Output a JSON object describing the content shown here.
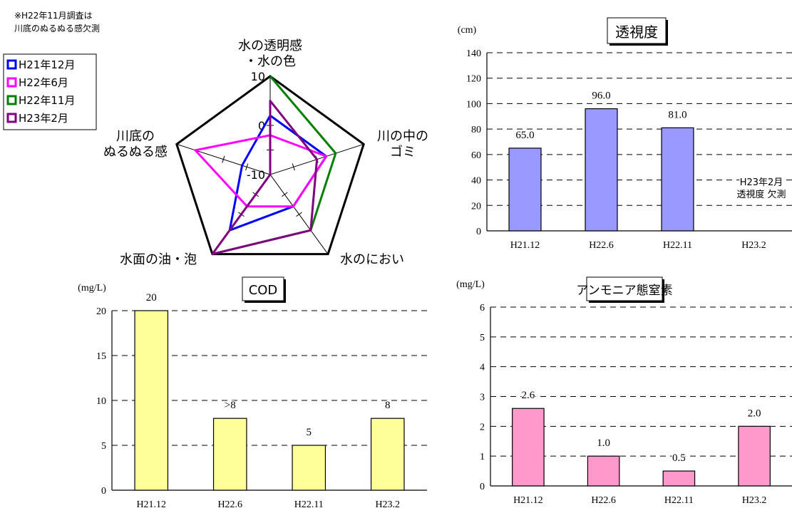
{
  "note": [
    "※H22年11月調査は",
    "川底のぬるぬる感欠測"
  ],
  "radar": {
    "axes": [
      {
        "label": [
          "水の透明感",
          "・水の色"
        ]
      },
      {
        "label": [
          "川の中の",
          "ゴミ"
        ]
      },
      {
        "label": [
          "水のにおい"
        ]
      },
      {
        "label": [
          "水面の油・泡"
        ]
      },
      {
        "label": [
          "川底の",
          "ぬるぬる感"
        ]
      }
    ],
    "range": [
      -10,
      10
    ],
    "ticks": [
      "10",
      "0",
      "-10"
    ],
    "legend": [
      {
        "label": "H21年12月",
        "color": "#0000ff"
      },
      {
        "label": "H22年6月",
        "color": "#ff00ff"
      },
      {
        "label": "H22年11月",
        "color": "#008000"
      },
      {
        "label": "H23年2月",
        "color": "#800080"
      }
    ],
    "series": [
      {
        "name": "H21年12月",
        "color": "#0000ff",
        "values": [
          2,
          2,
          -2,
          4,
          -4
        ]
      },
      {
        "name": "H22年6月",
        "color": "#ff00ff",
        "values": [
          -2,
          2,
          -2,
          -2,
          6
        ]
      },
      {
        "name": "H22年11月",
        "color": "#008000",
        "values": [
          10,
          4,
          4,
          10,
          null
        ]
      },
      {
        "name": "H23年2月",
        "color": "#800080",
        "values": [
          5,
          0,
          4,
          10,
          -10
        ]
      }
    ]
  },
  "chart_data": [
    {
      "type": "bar",
      "title": "透視度",
      "ylabel": "(cm)",
      "categories": [
        "H21.12",
        "H22.6",
        "H22.11",
        "H23.2"
      ],
      "values": [
        65.0,
        96.0,
        81.0,
        null
      ],
      "value_labels": [
        "65.0",
        "96.0",
        "81.0",
        ""
      ],
      "ylim": [
        0,
        140
      ],
      "yticks": [
        0,
        20,
        40,
        60,
        80,
        100,
        120,
        140
      ],
      "bar_color": "#9999ff",
      "grid": true,
      "annotation": [
        "H23年2月",
        "透視度 欠測"
      ]
    },
    {
      "type": "bar",
      "title": "COD",
      "ylabel": "(mg/L)",
      "categories": [
        "H21.12",
        "H22.6",
        "H22.11",
        "H23.2"
      ],
      "values": [
        20,
        8,
        5,
        8
      ],
      "value_labels": [
        "20",
        ">8",
        "5",
        "8"
      ],
      "ylim": [
        0,
        20
      ],
      "yticks": [
        0,
        5,
        10,
        15,
        20
      ],
      "bar_color": "#ffff99",
      "grid": true
    },
    {
      "type": "bar",
      "title": "アンモニア態窒素",
      "ylabel": "(mg/L)",
      "categories": [
        "H21.12",
        "H22.6",
        "H22.11",
        "H23.2"
      ],
      "values": [
        2.6,
        1.0,
        0.5,
        2.0
      ],
      "value_labels": [
        "2.6",
        "1.0",
        "0.5",
        "2.0"
      ],
      "ylim": [
        0,
        6
      ],
      "yticks": [
        0,
        1,
        2,
        3,
        4,
        5,
        6
      ],
      "bar_color": "#ff99cc",
      "grid": true
    }
  ]
}
